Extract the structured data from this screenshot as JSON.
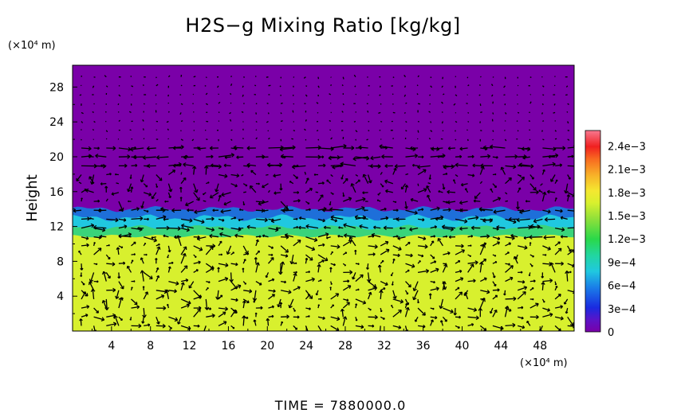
{
  "chart_data": {
    "type": "heatmap",
    "title": "H2S−g Mixing Ratio [kg/kg]",
    "ylabel": "Height",
    "y_unit_label": "(×10⁴ m)",
    "x_unit_label": "(×10⁴ m)",
    "time_label": "TIME  =  7880000.0",
    "xlim": [
      0,
      51.5
    ],
    "ylim": [
      0,
      30.5
    ],
    "x_ticks": [
      "4",
      "8",
      "12",
      "16",
      "20",
      "24",
      "28",
      "32",
      "36",
      "40",
      "44",
      "48"
    ],
    "x_tick_values": [
      4,
      8,
      12,
      16,
      20,
      24,
      28,
      32,
      36,
      40,
      44,
      48
    ],
    "y_ticks": [
      "4",
      "8",
      "12",
      "16",
      "20",
      "24",
      "28"
    ],
    "y_tick_values": [
      4,
      8,
      12,
      16,
      20,
      24,
      28
    ],
    "colorbar": {
      "range": [
        0,
        0.0026
      ],
      "tick_labels": [
        "0",
        "3e−4",
        "6e−4",
        "9e−4",
        "1.2e−3",
        "1.5e−3",
        "1.8e−3",
        "2.1e−3",
        "2.4e−3"
      ],
      "tick_values": [
        0,
        0.0003,
        0.0006,
        0.0009,
        0.0012,
        0.0015,
        0.0018,
        0.0021,
        0.0024
      ]
    },
    "field_layers": [
      {
        "name": "upper layer",
        "y_range": [
          14,
          30.5
        ],
        "value": 0,
        "color": "#7a00a8"
      },
      {
        "name": "transition band",
        "y_range": [
          11.2,
          14
        ],
        "value_range": [
          0.0003,
          0.0013
        ]
      },
      {
        "name": "lower layer",
        "y_range": [
          0,
          11.2
        ],
        "value": 0.0017,
        "color": "#d8f02e"
      }
    ],
    "vectors": "wind vector arrows overlaid on the field",
    "colors": {
      "upper": "#7a00a8",
      "lower": "#d8f02e",
      "band_blue": "#1e6fd9",
      "band_cyan": "#20c8e0",
      "band_green": "#3ad47a",
      "arrow": "#000000"
    }
  }
}
